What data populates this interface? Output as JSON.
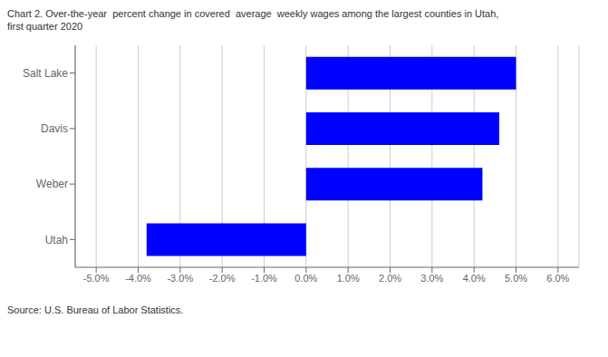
{
  "chart_data": {
    "type": "bar",
    "orientation": "horizontal",
    "title": "Chart 2. Over-the-year  percent change in covered  average  weekly wages among the largest counties in Utah,",
    "subtitle": "first quarter 2020",
    "annotations": [
      "Source: U.S. Bureau of Labor Statistics."
    ],
    "categories": [
      "Utah",
      "Weber",
      "Davis",
      "Salt Lake"
    ],
    "values": [
      -3.8,
      4.2,
      4.6,
      5.0
    ],
    "color": "#0000ff",
    "xlim": [
      -5.5,
      6.5
    ],
    "xticks": [
      {
        "value": -5.0,
        "label": "-5.0%"
      },
      {
        "value": -4.0,
        "label": "-4.0%"
      },
      {
        "value": -3.0,
        "label": "-3.0%"
      },
      {
        "value": -2.0,
        "label": "-2.0%"
      },
      {
        "value": -1.0,
        "label": "-1.0%"
      },
      {
        "value": 0.0,
        "label": "0.0%"
      },
      {
        "value": 1.0,
        "label": "1.0%"
      },
      {
        "value": 2.0,
        "label": "2.0%"
      },
      {
        "value": 3.0,
        "label": "3.0%"
      },
      {
        "value": 4.0,
        "label": "4.0%"
      },
      {
        "value": 5.0,
        "label": "5.0%"
      },
      {
        "value": 6.0,
        "label": "6.0%"
      }
    ],
    "grid": true
  }
}
